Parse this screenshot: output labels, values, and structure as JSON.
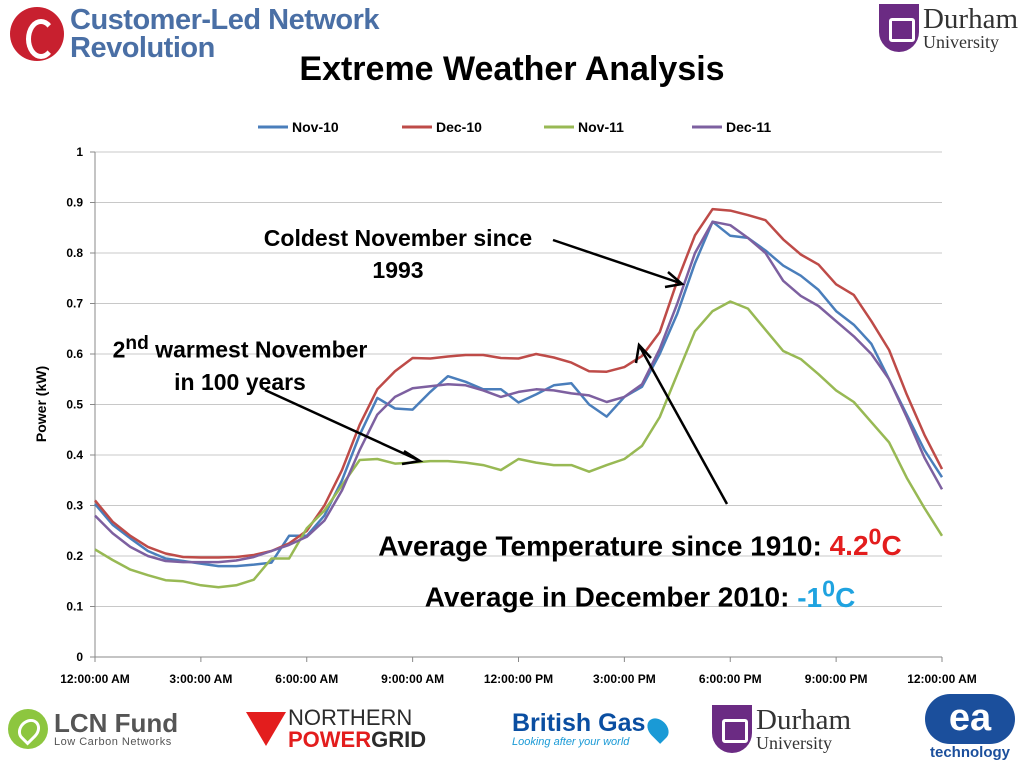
{
  "header": {
    "org_line1": "Customer-Led Network",
    "org_line2": "Revolution",
    "durham_line1": "Durham",
    "durham_line2": "University"
  },
  "title": "Extreme Weather Analysis",
  "chart_data": {
    "type": "line",
    "title": "",
    "xlabel": "",
    "ylabel": "Power (kW)",
    "ylim": [
      0,
      1
    ],
    "y_ticks": [
      "0",
      "0.1",
      "0.2",
      "0.3",
      "0.4",
      "0.5",
      "0.6",
      "0.7",
      "0.8",
      "0.9",
      "1"
    ],
    "x_tick_labels": [
      "12:00:00 AM",
      "3:00:00 AM",
      "6:00:00 AM",
      "9:00:00 AM",
      "12:00:00 PM",
      "3:00:00 PM",
      "6:00:00 PM",
      "9:00:00 PM",
      "12:00:00 AM"
    ],
    "x_interval_minutes": 30,
    "grid": true,
    "legend_position": "top",
    "series": [
      {
        "name": "Nov-10",
        "color": "#4a7ebb",
        "values": [
          0.303,
          0.262,
          0.235,
          0.21,
          0.195,
          0.19,
          0.185,
          0.18,
          0.18,
          0.183,
          0.187,
          0.24,
          0.24,
          0.28,
          0.35,
          0.44,
          0.513,
          0.492,
          0.49,
          0.525,
          0.556,
          0.545,
          0.53,
          0.53,
          0.504,
          0.52,
          0.538,
          0.542,
          0.5,
          0.476,
          0.515,
          0.535,
          0.6,
          0.68,
          0.78,
          0.862,
          0.834,
          0.83,
          0.805,
          0.775,
          0.755,
          0.727,
          0.685,
          0.658,
          0.62,
          0.55,
          0.48,
          0.41,
          0.356
        ]
      },
      {
        "name": "Dec-10",
        "color": "#be4b48",
        "values": [
          0.31,
          0.268,
          0.24,
          0.218,
          0.205,
          0.198,
          0.197,
          0.197,
          0.198,
          0.202,
          0.21,
          0.225,
          0.25,
          0.3,
          0.37,
          0.46,
          0.53,
          0.566,
          0.592,
          0.591,
          0.595,
          0.598,
          0.598,
          0.592,
          0.591,
          0.6,
          0.593,
          0.583,
          0.566,
          0.565,
          0.574,
          0.596,
          0.643,
          0.745,
          0.835,
          0.887,
          0.884,
          0.875,
          0.865,
          0.827,
          0.797,
          0.777,
          0.738,
          0.717,
          0.665,
          0.608,
          0.52,
          0.44,
          0.372
        ]
      },
      {
        "name": "Nov-11",
        "color": "#98b954",
        "values": [
          0.213,
          0.192,
          0.173,
          0.162,
          0.152,
          0.15,
          0.142,
          0.138,
          0.142,
          0.153,
          0.195,
          0.195,
          0.255,
          0.29,
          0.34,
          0.39,
          0.392,
          0.383,
          0.385,
          0.388,
          0.388,
          0.385,
          0.38,
          0.37,
          0.392,
          0.385,
          0.38,
          0.38,
          0.367,
          0.38,
          0.392,
          0.418,
          0.475,
          0.56,
          0.645,
          0.685,
          0.704,
          0.69,
          0.648,
          0.606,
          0.59,
          0.56,
          0.528,
          0.505,
          0.465,
          0.425,
          0.355,
          0.295,
          0.24
        ]
      },
      {
        "name": "Dec-11",
        "color": "#7d60a0",
        "values": [
          0.28,
          0.245,
          0.218,
          0.2,
          0.19,
          0.188,
          0.188,
          0.188,
          0.191,
          0.198,
          0.21,
          0.222,
          0.238,
          0.27,
          0.33,
          0.41,
          0.48,
          0.515,
          0.532,
          0.536,
          0.54,
          0.538,
          0.528,
          0.515,
          0.525,
          0.53,
          0.528,
          0.522,
          0.518,
          0.505,
          0.515,
          0.54,
          0.61,
          0.7,
          0.8,
          0.862,
          0.855,
          0.83,
          0.8,
          0.745,
          0.715,
          0.695,
          0.665,
          0.635,
          0.6,
          0.55,
          0.475,
          0.395,
          0.332
        ]
      }
    ]
  },
  "annotations": {
    "coldest_line1": "Coldest November since",
    "coldest_line2": "1993",
    "warm_sup_prefix": "2",
    "warm_sup": "nd",
    "warm_line1_rest": " warmest November",
    "warm_line2": "in 100 years",
    "avg_since_label": "Average Temperature since 1910: ",
    "avg_since_value": "4.2",
    "avg_since_sup": "0",
    "avg_since_unit": "C",
    "avg_dec_label": "Average in December 2010: ",
    "avg_dec_value": "-1",
    "avg_dec_sup": "0",
    "avg_dec_unit": "C"
  },
  "footer": {
    "lcn_title": "LCN Fund",
    "lcn_sub": "Low Carbon Networks",
    "npg_line1": "NORTHERN",
    "npg_line2a": "POWER",
    "npg_line2b": "GRID",
    "bg_title": "British Gas",
    "bg_tagline": "Looking after your world",
    "durham_line1": "Durham",
    "durham_line2": "University",
    "ea_mark": "ea",
    "ea_text": "technology"
  }
}
